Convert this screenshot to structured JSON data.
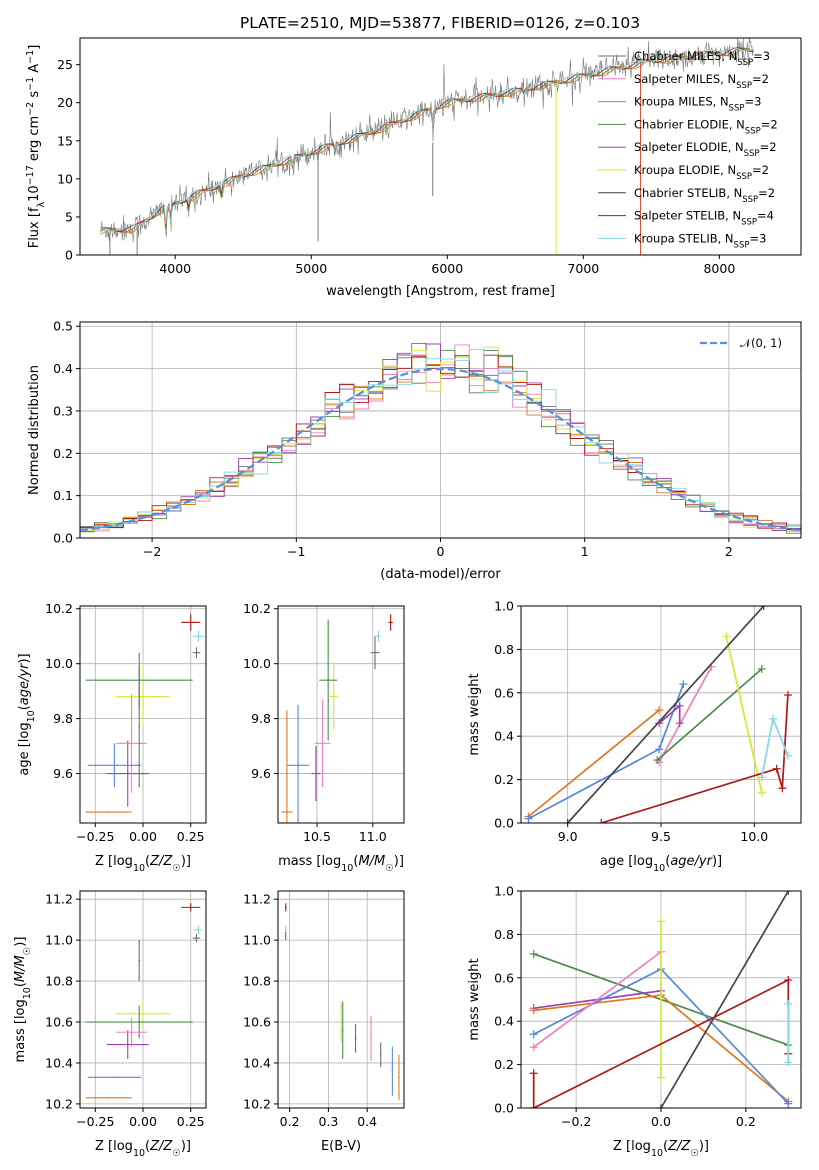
{
  "title": "PLATE=2510, MJD=53877, FIBERID=0126, z=0.103",
  "colors": {
    "Chabrier MILES": "#6f6f6f",
    "Salpeter MILES": "#f080c0",
    "Kroupa MILES": "#e07820",
    "Chabrier ELODIE": "#4e8a4e",
    "Salpeter ELODIE": "#a040b0",
    "Kroupa ELODIE": "#d4e830",
    "Chabrier STELIB": "#444444",
    "Salpeter STELIB": "#b01818",
    "Kroupa STELIB": "#80d8e0",
    "extra_blue": "#5588dd",
    "gauss": "#5b8fd6"
  },
  "chart_data": [
    {
      "id": "spectrum",
      "type": "line",
      "xlabel": "wavelength [Angstrom, rest frame]",
      "ylabel": "Flux [fλ10⁻¹⁷ erg cm⁻² s⁻¹ A⁻¹]",
      "xlim": [
        3300,
        8600
      ],
      "ylim": [
        0,
        28.5
      ],
      "xticks": [
        4000,
        5000,
        6000,
        7000,
        8000
      ],
      "yticks": [
        0,
        5,
        10,
        15,
        20,
        25
      ],
      "grid": false,
      "legend": "upper right",
      "continuum_anchor_points": [
        {
          "x": 3450,
          "y": 3.2
        },
        {
          "x": 3700,
          "y": 3.5
        },
        {
          "x": 3900,
          "y": 6
        },
        {
          "x": 4100,
          "y": 7.5
        },
        {
          "x": 4500,
          "y": 10.5
        },
        {
          "x": 5000,
          "y": 13.5
        },
        {
          "x": 5500,
          "y": 16.5
        },
        {
          "x": 6000,
          "y": 20
        },
        {
          "x": 6500,
          "y": 21.5
        },
        {
          "x": 7000,
          "y": 23.5
        },
        {
          "x": 7500,
          "y": 25.5
        },
        {
          "x": 8000,
          "y": 26.5
        },
        {
          "x": 8200,
          "y": 27
        }
      ],
      "series": [
        {
          "name": "Chabrier MILES, N_SSP=3",
          "label_main": "Chabrier MILES, N",
          "label_sub": "SSP",
          "label_tail": "=3"
        },
        {
          "name": "Salpeter MILES, N_SSP=2",
          "label_main": "Salpeter MILES, N",
          "label_sub": "SSP",
          "label_tail": "=2"
        },
        {
          "name": "Kroupa MILES, N_SSP=3",
          "label_main": "Kroupa MILES, N",
          "label_sub": "SSP",
          "label_tail": "=3"
        },
        {
          "name": "Chabrier ELODIE, N_SSP=2",
          "label_main": "Chabrier ELODIE, N",
          "label_sub": "SSP",
          "label_tail": "=2"
        },
        {
          "name": "Salpeter ELODIE, N_SSP=2",
          "label_main": "Salpeter ELODIE, N",
          "label_sub": "SSP",
          "label_tail": "=2"
        },
        {
          "name": "Kroupa ELODIE, N_SSP=2",
          "label_main": "Kroupa ELODIE, N",
          "label_sub": "SSP",
          "label_tail": "=2"
        },
        {
          "name": "Chabrier STELIB, N_SSP=2",
          "label_main": "Chabrier STELIB, N",
          "label_sub": "SSP",
          "label_tail": "=2"
        },
        {
          "name": "Salpeter STELIB, N_SSP=4",
          "label_main": "Salpeter STELIB, N",
          "label_sub": "SSP",
          "label_tail": "=4"
        },
        {
          "name": "Kroupa STELIB, N_SSP=3",
          "label_main": "Kroupa STELIB, N",
          "label_sub": "SSP",
          "label_tail": "=3"
        }
      ]
    },
    {
      "id": "residuals",
      "type": "line",
      "xlabel": "(data-model)/error",
      "ylabel": "Normed distribution",
      "xlim": [
        -2.5,
        2.5
      ],
      "ylim": [
        0,
        0.51
      ],
      "xticks": [
        -2,
        -1,
        0,
        1,
        2
      ],
      "xtick_labels": [
        "−2",
        "−1",
        "0",
        "1",
        "2"
      ],
      "yticks": [
        0.0,
        0.1,
        0.2,
        0.3,
        0.4,
        0.5
      ],
      "ytick_labels": [
        "0.0",
        "0.1",
        "0.2",
        "0.3",
        "0.4",
        "0.5"
      ],
      "grid": true,
      "legend": "upper right",
      "legend_label": "𝒩(0, 1)",
      "bin_width": 0.1
    },
    {
      "id": "age_vs_Z",
      "type": "scatter",
      "xlabel": "Z [log10(Z/Z☉)]",
      "ylabel": "age [log10(age/yr)]",
      "xlim": [
        -0.33,
        0.33
      ],
      "ylim": [
        9.42,
        10.21
      ],
      "xticks": [
        -0.25,
        0.0,
        0.25
      ],
      "xtick_labels": [
        "−0.25",
        "0.00",
        "0.25"
      ],
      "yticks": [
        9.6,
        9.8,
        10.0,
        10.2
      ],
      "ytick_labels": [
        "9.6",
        "9.8",
        "10.0",
        "10.2"
      ],
      "grid": true,
      "points": [
        {
          "c": "Salpeter STELIB",
          "x": 0.25,
          "y": 10.15,
          "xerr": 0.05,
          "yerr": 0.03
        },
        {
          "c": "Kroupa STELIB",
          "x": 0.29,
          "y": 10.1,
          "xerr": 0.03,
          "yerr": 0.02
        },
        {
          "c": "Chabrier MILES",
          "x": 0.28,
          "y": 10.04,
          "xerr": 0.02,
          "yerr": 0.02
        },
        {
          "c": "Kroupa ELODIE",
          "x": 0.0,
          "y": 9.88,
          "xerr": 0.14,
          "yerr": 0.12
        },
        {
          "c": "Chabrier ELODIE",
          "x": -0.02,
          "y": 9.94,
          "xerr": 0.28,
          "yerr": 0.1
        },
        {
          "c": "Salpeter ELODIE",
          "x": -0.08,
          "y": 9.6,
          "xerr": 0.11,
          "yerr": 0.12
        },
        {
          "c": "Salpeter MILES",
          "x": -0.06,
          "y": 9.71,
          "xerr": 0.08,
          "yerr": 0.18
        },
        {
          "c": "extra_blue",
          "x": -0.15,
          "y": 9.63,
          "xerr": 0.14,
          "yerr": 0.08
        },
        {
          "c": "Kroupa MILES",
          "x": -0.18,
          "y": 9.46,
          "xerr": 0.12,
          "yerr": 0.0
        },
        {
          "c": "Chabrier MILES",
          "x": -0.02,
          "y": 9.77,
          "xerr": 0.0,
          "yerr": 0.22
        }
      ]
    },
    {
      "id": "age_vs_mass",
      "type": "scatter",
      "xlabel": "mass [log10(M/M☉)]",
      "xlim": [
        10.15,
        11.28
      ],
      "ylim": [
        9.42,
        10.21
      ],
      "xticks": [
        10.5,
        11.0
      ],
      "xtick_labels": [
        "10.5",
        "11.0"
      ],
      "yticks": [
        9.6,
        9.8,
        10.0,
        10.2
      ],
      "ytick_labels": [
        "9.6",
        "9.8",
        "10.0",
        "10.2"
      ],
      "grid": true,
      "points": [
        {
          "c": "Salpeter STELIB",
          "x": 11.16,
          "y": 10.15,
          "xerr": 0.02,
          "yerr": 0.03
        },
        {
          "c": "Kroupa STELIB",
          "x": 11.05,
          "y": 10.1,
          "xerr": 0.02,
          "yerr": 0.02
        },
        {
          "c": "Chabrier MILES",
          "x": 11.02,
          "y": 10.04,
          "xerr": 0.04,
          "yerr": 0.06
        },
        {
          "c": "Kroupa ELODIE",
          "x": 10.65,
          "y": 9.88,
          "xerr": 0.04,
          "yerr": 0.12
        },
        {
          "c": "Chabrier ELODIE",
          "x": 10.6,
          "y": 9.94,
          "xerr": 0.08,
          "yerr": 0.22
        },
        {
          "c": "Salpeter ELODIE",
          "x": 10.49,
          "y": 9.6,
          "xerr": 0.04,
          "yerr": 0.1
        },
        {
          "c": "Salpeter MILES",
          "x": 10.55,
          "y": 9.71,
          "xerr": 0.07,
          "yerr": 0.16
        },
        {
          "c": "extra_blue",
          "x": 10.33,
          "y": 9.63,
          "xerr": 0.1,
          "yerr": 0.22
        },
        {
          "c": "Kroupa MILES",
          "x": 10.23,
          "y": 9.46,
          "xerr": 0.05,
          "yerr": 0.37
        }
      ]
    },
    {
      "id": "weight_vs_age",
      "type": "line",
      "xlabel": "age [log10(age/yr)]",
      "ylabel": "mass weight",
      "xlim": [
        8.75,
        10.25
      ],
      "ylim": [
        0,
        1
      ],
      "xticks": [
        9.0,
        9.5,
        10.0
      ],
      "xtick_labels": [
        "9.0",
        "9.5",
        "10.0"
      ],
      "yticks": [
        0,
        0.2,
        0.4,
        0.6,
        0.8,
        1.0
      ],
      "ytick_labels": [
        "0.0",
        "0.2",
        "0.4",
        "0.6",
        "0.8",
        "1.0"
      ],
      "grid": true,
      "series": [
        {
          "c": "Kroupa MILES",
          "x": [
            8.79,
            9.49
          ],
          "y": [
            0.03,
            0.52
          ]
        },
        {
          "c": "extra_blue",
          "x": [
            8.79,
            9.49,
            9.62
          ],
          "y": [
            0.02,
            0.34,
            0.64
          ]
        },
        {
          "c": "Salpeter MILES",
          "x": [
            9.49,
            9.77
          ],
          "y": [
            0.28,
            0.72
          ]
        },
        {
          "c": "Salpeter ELODIE",
          "x": [
            9.49,
            9.6,
            9.6
          ],
          "y": [
            0.46,
            0.54,
            0.46
          ]
        },
        {
          "c": "Chabrier ELODIE",
          "x": [
            9.48,
            10.04
          ],
          "y": [
            0.29,
            0.71
          ]
        },
        {
          "c": "Kroupa ELODIE",
          "x": [
            9.85,
            10.04
          ],
          "y": [
            0.86,
            0.14
          ]
        },
        {
          "c": "Chabrier STELIB",
          "x": [
            9.0,
            10.05
          ],
          "y": [
            0.0,
            1.0
          ]
        },
        {
          "c": "Salpeter STELIB",
          "x": [
            9.18,
            10.12,
            10.15,
            10.18
          ],
          "y": [
            0.0,
            0.25,
            0.16,
            0.59
          ]
        },
        {
          "c": "Kroupa STELIB",
          "x": [
            10.04,
            10.1,
            10.18
          ],
          "y": [
            0.21,
            0.48,
            0.31
          ]
        }
      ]
    },
    {
      "id": "mass_vs_Z",
      "type": "scatter",
      "xlabel": "Z [log10(Z/Z☉)]",
      "ylabel": "mass [log10(M/M☉)]",
      "xlim": [
        -0.33,
        0.33
      ],
      "ylim": [
        10.18,
        11.24
      ],
      "xticks": [
        -0.25,
        0.0,
        0.25
      ],
      "xtick_labels": [
        "−0.25",
        "0.00",
        "0.25"
      ],
      "yticks": [
        10.2,
        10.4,
        10.6,
        10.8,
        11.0,
        11.2
      ],
      "ytick_labels": [
        "10.2",
        "10.4",
        "10.6",
        "10.8",
        "11.0",
        "11.2"
      ],
      "grid": true,
      "points": [
        {
          "c": "Salpeter STELIB",
          "x": 0.25,
          "y": 11.16,
          "xerr": 0.05,
          "yerr": 0.02
        },
        {
          "c": "Kroupa STELIB",
          "x": 0.29,
          "y": 11.05,
          "xerr": 0.02,
          "yerr": 0.02
        },
        {
          "c": "Chabrier MILES",
          "x": 0.28,
          "y": 11.01,
          "xerr": 0.02,
          "yerr": 0.02
        },
        {
          "c": "Kroupa ELODIE",
          "x": 0.0,
          "y": 10.64,
          "xerr": 0.14,
          "yerr": 0.08
        },
        {
          "c": "Chabrier ELODIE",
          "x": -0.02,
          "y": 10.6,
          "xerr": 0.28,
          "yerr": 0.08
        },
        {
          "c": "Salpeter ELODIE",
          "x": -0.08,
          "y": 10.49,
          "xerr": 0.11,
          "yerr": 0.07
        },
        {
          "c": "Salpeter MILES",
          "x": -0.06,
          "y": 10.55,
          "xerr": 0.08,
          "yerr": 0.07
        },
        {
          "c": "extra_blue",
          "x": -0.15,
          "y": 10.33,
          "xerr": 0.14,
          "yerr": 0.0
        },
        {
          "c": "Kroupa MILES",
          "x": -0.18,
          "y": 10.23,
          "xerr": 0.12,
          "yerr": 0.0
        },
        {
          "c": "Chabrier MILES",
          "x": -0.02,
          "y": 10.9,
          "xerr": 0.0,
          "yerr": 0.1
        }
      ]
    },
    {
      "id": "mass_vs_EBV",
      "type": "scatter",
      "xlabel": "E(B-V)",
      "xlim": [
        0.17,
        0.495
      ],
      "ylim": [
        10.18,
        11.24
      ],
      "xticks": [
        0.2,
        0.3,
        0.4
      ],
      "xtick_labels": [
        "0.2",
        "0.3",
        "0.4"
      ],
      "yticks": [
        10.2,
        10.4,
        10.6,
        10.8,
        11.0,
        11.2
      ],
      "ytick_labels": [
        "10.2",
        "10.4",
        "10.6",
        "10.8",
        "11.0",
        "11.2"
      ],
      "grid": true,
      "points": [
        {
          "c": "Salpeter STELIB",
          "x": 0.19,
          "y": 11.16,
          "xerr": 0.0,
          "yerr": 0.02
        },
        {
          "c": "Kroupa STELIB",
          "x": 0.19,
          "y": 11.05,
          "xerr": 0.0,
          "yerr": 0.02
        },
        {
          "c": "Chabrier MILES",
          "x": 0.19,
          "y": 11.02,
          "xerr": 0.0,
          "yerr": 0.02
        },
        {
          "c": "Kroupa ELODIE",
          "x": 0.333,
          "y": 10.6,
          "xerr": 0.0,
          "yerr": 0.1
        },
        {
          "c": "Chabrier ELODIE",
          "x": 0.337,
          "y": 10.56,
          "xerr": 0.0,
          "yerr": 0.14
        },
        {
          "c": "Salpeter ELODIE",
          "x": 0.37,
          "y": 10.52,
          "xerr": 0.0,
          "yerr": 0.07
        },
        {
          "c": "Salpeter MILES",
          "x": 0.41,
          "y": 10.52,
          "xerr": 0.0,
          "yerr": 0.11
        },
        {
          "c": "extra_blue",
          "x": 0.465,
          "y": 10.36,
          "xerr": 0.0,
          "yerr": 0.12
        },
        {
          "c": "Kroupa MILES",
          "x": 0.482,
          "y": 10.33,
          "xerr": 0.0,
          "yerr": 0.11
        },
        {
          "c": "Chabrier MILES",
          "x": 0.435,
          "y": 10.44,
          "xerr": 0.0,
          "yerr": 0.06
        }
      ]
    },
    {
      "id": "weight_vs_Z",
      "type": "line",
      "xlabel": "Z [log10(Z/Z☉)]",
      "ylabel": "mass weight",
      "xlim": [
        -0.33,
        0.33
      ],
      "ylim": [
        0,
        1
      ],
      "xticks": [
        -0.2,
        0.0,
        0.2
      ],
      "xtick_labels": [
        "−0.2",
        "0.0",
        "0.2"
      ],
      "yticks": [
        0,
        0.2,
        0.4,
        0.6,
        0.8,
        1.0
      ],
      "ytick_labels": [
        "0.0",
        "0.2",
        "0.4",
        "0.6",
        "0.8",
        "1.0"
      ],
      "grid": true,
      "series": [
        {
          "c": "Chabrier ELODIE",
          "x": [
            -0.3,
            0.3
          ],
          "y": [
            0.71,
            0.29
          ]
        },
        {
          "c": "Salpeter ELODIE",
          "x": [
            -0.3,
            0.0
          ],
          "y": [
            0.46,
            0.54
          ]
        },
        {
          "c": "Kroupa MILES",
          "x": [
            -0.3,
            0.0,
            0.3
          ],
          "y": [
            0.45,
            0.52,
            0.03
          ]
        },
        {
          "c": "extra_blue",
          "x": [
            -0.3,
            0.0,
            0.3
          ],
          "y": [
            0.34,
            0.64,
            0.02
          ]
        },
        {
          "c": "Salpeter MILES",
          "x": [
            -0.3,
            0.0
          ],
          "y": [
            0.28,
            0.72
          ]
        },
        {
          "c": "Kroupa ELODIE",
          "x": [
            0.0,
            0.0
          ],
          "y": [
            0.14,
            0.86
          ]
        },
        {
          "c": "Chabrier STELIB",
          "x": [
            0.0,
            0.3
          ],
          "y": [
            0.0,
            1.0
          ]
        },
        {
          "c": "Salpeter STELIB",
          "x": [
            -0.3,
            0.3,
            0.3
          ],
          "y": [
            0.0,
            0.59,
            0.25
          ]
        },
        {
          "c": "Salpeter STELIB",
          "x": [
            -0.3,
            -0.3
          ],
          "y": [
            0.0,
            0.16
          ]
        },
        {
          "c": "Kroupa STELIB",
          "x": [
            0.3,
            0.3
          ],
          "y": [
            0.21,
            0.48
          ]
        }
      ]
    }
  ]
}
